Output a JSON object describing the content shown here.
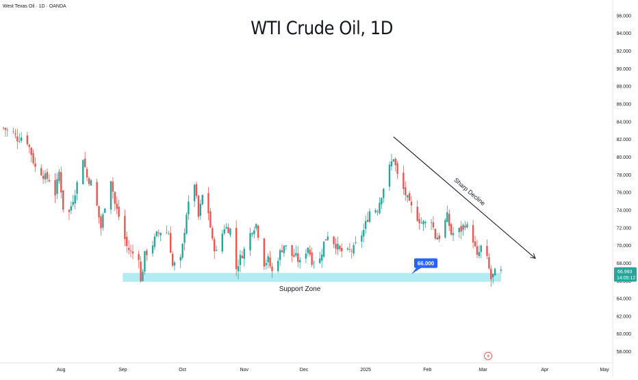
{
  "header": {
    "symbol_info": "West Texas Oil · 1D · OANDA",
    "title": "WTI Crude Oil, 1D"
  },
  "colors": {
    "up": "#26a69a",
    "down": "#ef5350",
    "support_zone": "#b2ebf2",
    "badge": "#2962ff",
    "last_price_badge": "#26a69a",
    "text": "#131722"
  },
  "annotations": {
    "support_zone_label": "Support Zone",
    "support_level_badge": "66.000",
    "trend_label": "Sharp Decline",
    "last_price": "66.993",
    "countdown": "14:05:12",
    "flash_icon": "lightning-icon"
  },
  "chart_data": {
    "type": "candlestick",
    "title": "WTI Crude Oil, 1D",
    "y_axis": {
      "ticks": [
        "96.000",
        "94.000",
        "92.000",
        "90.000",
        "88.000",
        "86.000",
        "84.000",
        "82.000",
        "80.000",
        "78.000",
        "76.000",
        "74.000",
        "72.000",
        "70.000",
        "68.000",
        "66.000",
        "64.000",
        "62.000",
        "60.000",
        "58.000"
      ],
      "ylim": [
        57.5,
        97
      ]
    },
    "x_axis": {
      "ticks": [
        {
          "label": "Aug",
          "date": "2024-08-01"
        },
        {
          "label": "Sep",
          "date": "2024-09-01"
        },
        {
          "label": "Oct",
          "date": "2024-10-01"
        },
        {
          "label": "Nov",
          "date": "2024-11-01"
        },
        {
          "label": "Dec",
          "date": "2024-12-01"
        },
        {
          "label": "2025",
          "date": "2025-01-01"
        },
        {
          "label": "Feb",
          "date": "2025-02-01"
        },
        {
          "label": "Mar",
          "date": "2025-03-01"
        },
        {
          "label": "Apr",
          "date": "2025-04-01"
        },
        {
          "label": "May",
          "date": "2025-05-01"
        }
      ],
      "range": [
        "2024-07-03",
        "2025-05-01"
      ]
    },
    "support_zone": {
      "low": 65.9,
      "high": 66.9,
      "from": "2024-09-01",
      "to": "2025-03-10",
      "label": "Support Zone"
    },
    "trend_line": {
      "from": {
        "date": "2025-01-15",
        "price": 82.3
      },
      "to": {
        "date": "2025-03-27",
        "price": 68.6
      },
      "label": "Sharp Decline"
    },
    "last_price": 66.993,
    "close_path": [
      [
        "2024-07-03",
        83.3
      ],
      [
        "2024-07-05",
        83.0
      ],
      [
        "2024-07-08",
        82.7
      ],
      [
        "2024-07-10",
        82.1
      ],
      [
        "2024-07-12",
        82.3
      ],
      [
        "2024-07-15",
        81.8
      ],
      [
        "2024-07-17",
        80.4
      ],
      [
        "2024-07-19",
        78.8
      ],
      [
        "2024-07-22",
        78.3
      ],
      [
        "2024-07-24",
        77.7
      ],
      [
        "2024-07-26",
        77.5
      ],
      [
        "2024-07-29",
        75.9
      ],
      [
        "2024-07-31",
        78.3
      ],
      [
        "2024-08-02",
        74.3
      ],
      [
        "2024-08-05",
        73.7
      ],
      [
        "2024-08-07",
        75.3
      ],
      [
        "2024-08-09",
        77.0
      ],
      [
        "2024-08-12",
        80.0
      ],
      [
        "2024-08-14",
        77.7
      ],
      [
        "2024-08-16",
        77.1
      ],
      [
        "2024-08-19",
        74.4
      ],
      [
        "2024-08-21",
        72.0
      ],
      [
        "2024-08-23",
        74.6
      ],
      [
        "2024-08-26",
        77.6
      ],
      [
        "2024-08-28",
        74.7
      ],
      [
        "2024-08-30",
        73.3
      ],
      [
        "2024-09-03",
        69.9
      ],
      [
        "2024-09-05",
        69.2
      ],
      [
        "2024-09-09",
        68.8
      ],
      [
        "2024-09-10",
        65.8
      ],
      [
        "2024-09-12",
        68.9
      ],
      [
        "2024-09-16",
        70.2
      ],
      [
        "2024-09-18",
        71.2
      ],
      [
        "2024-09-20",
        71.6
      ],
      [
        "2024-09-24",
        71.4
      ],
      [
        "2024-09-26",
        67.7
      ],
      [
        "2024-09-30",
        68.3
      ],
      [
        "2024-10-01",
        69.9
      ],
      [
        "2024-10-03",
        73.7
      ],
      [
        "2024-10-07",
        77.1
      ],
      [
        "2024-10-09",
        73.2
      ],
      [
        "2024-10-11",
        75.6
      ],
      [
        "2024-10-14",
        73.8
      ],
      [
        "2024-10-16",
        70.4
      ],
      [
        "2024-10-18",
        69.2
      ],
      [
        "2024-10-22",
        72.1
      ],
      [
        "2024-10-25",
        71.8
      ],
      [
        "2024-10-28",
        67.4
      ],
      [
        "2024-10-30",
        68.6
      ],
      [
        "2024-11-01",
        69.5
      ],
      [
        "2024-11-05",
        71.9
      ],
      [
        "2024-11-07",
        72.4
      ],
      [
        "2024-11-11",
        68.0
      ],
      [
        "2024-11-13",
        68.4
      ],
      [
        "2024-11-15",
        67.0
      ],
      [
        "2024-11-19",
        69.2
      ],
      [
        "2024-11-21",
        70.1
      ],
      [
        "2024-11-25",
        68.9
      ],
      [
        "2024-11-27",
        68.7
      ],
      [
        "2024-11-29",
        68.0
      ],
      [
        "2024-12-03",
        69.9
      ],
      [
        "2024-12-05",
        68.3
      ],
      [
        "2024-12-09",
        68.4
      ],
      [
        "2024-12-11",
        70.3
      ],
      [
        "2024-12-13",
        71.3
      ],
      [
        "2024-12-17",
        70.1
      ],
      [
        "2024-12-19",
        69.4
      ],
      [
        "2024-12-23",
        69.2
      ],
      [
        "2024-12-26",
        69.6
      ],
      [
        "2024-12-31",
        71.7
      ],
      [
        "2025-01-03",
        73.9
      ],
      [
        "2025-01-07",
        74.2
      ],
      [
        "2025-01-10",
        76.6
      ],
      [
        "2025-01-13",
        78.8
      ],
      [
        "2025-01-15",
        80.0
      ],
      [
        "2025-01-17",
        77.9
      ],
      [
        "2025-01-21",
        75.8
      ],
      [
        "2025-01-23",
        74.6
      ],
      [
        "2025-01-27",
        73.2
      ],
      [
        "2025-01-29",
        72.6
      ],
      [
        "2025-01-31",
        72.5
      ],
      [
        "2025-02-03",
        73.0
      ],
      [
        "2025-02-05",
        71.0
      ],
      [
        "2025-02-07",
        71.0
      ],
      [
        "2025-02-11",
        73.3
      ],
      [
        "2025-02-13",
        71.3
      ],
      [
        "2025-02-18",
        71.8
      ],
      [
        "2025-02-20",
        72.5
      ],
      [
        "2025-02-24",
        70.7
      ],
      [
        "2025-02-26",
        68.6
      ],
      [
        "2025-02-28",
        69.8
      ],
      [
        "2025-03-03",
        68.4
      ],
      [
        "2025-03-05",
        66.2
      ],
      [
        "2025-03-07",
        66.9
      ],
      [
        "2025-03-10",
        66.993
      ]
    ]
  }
}
